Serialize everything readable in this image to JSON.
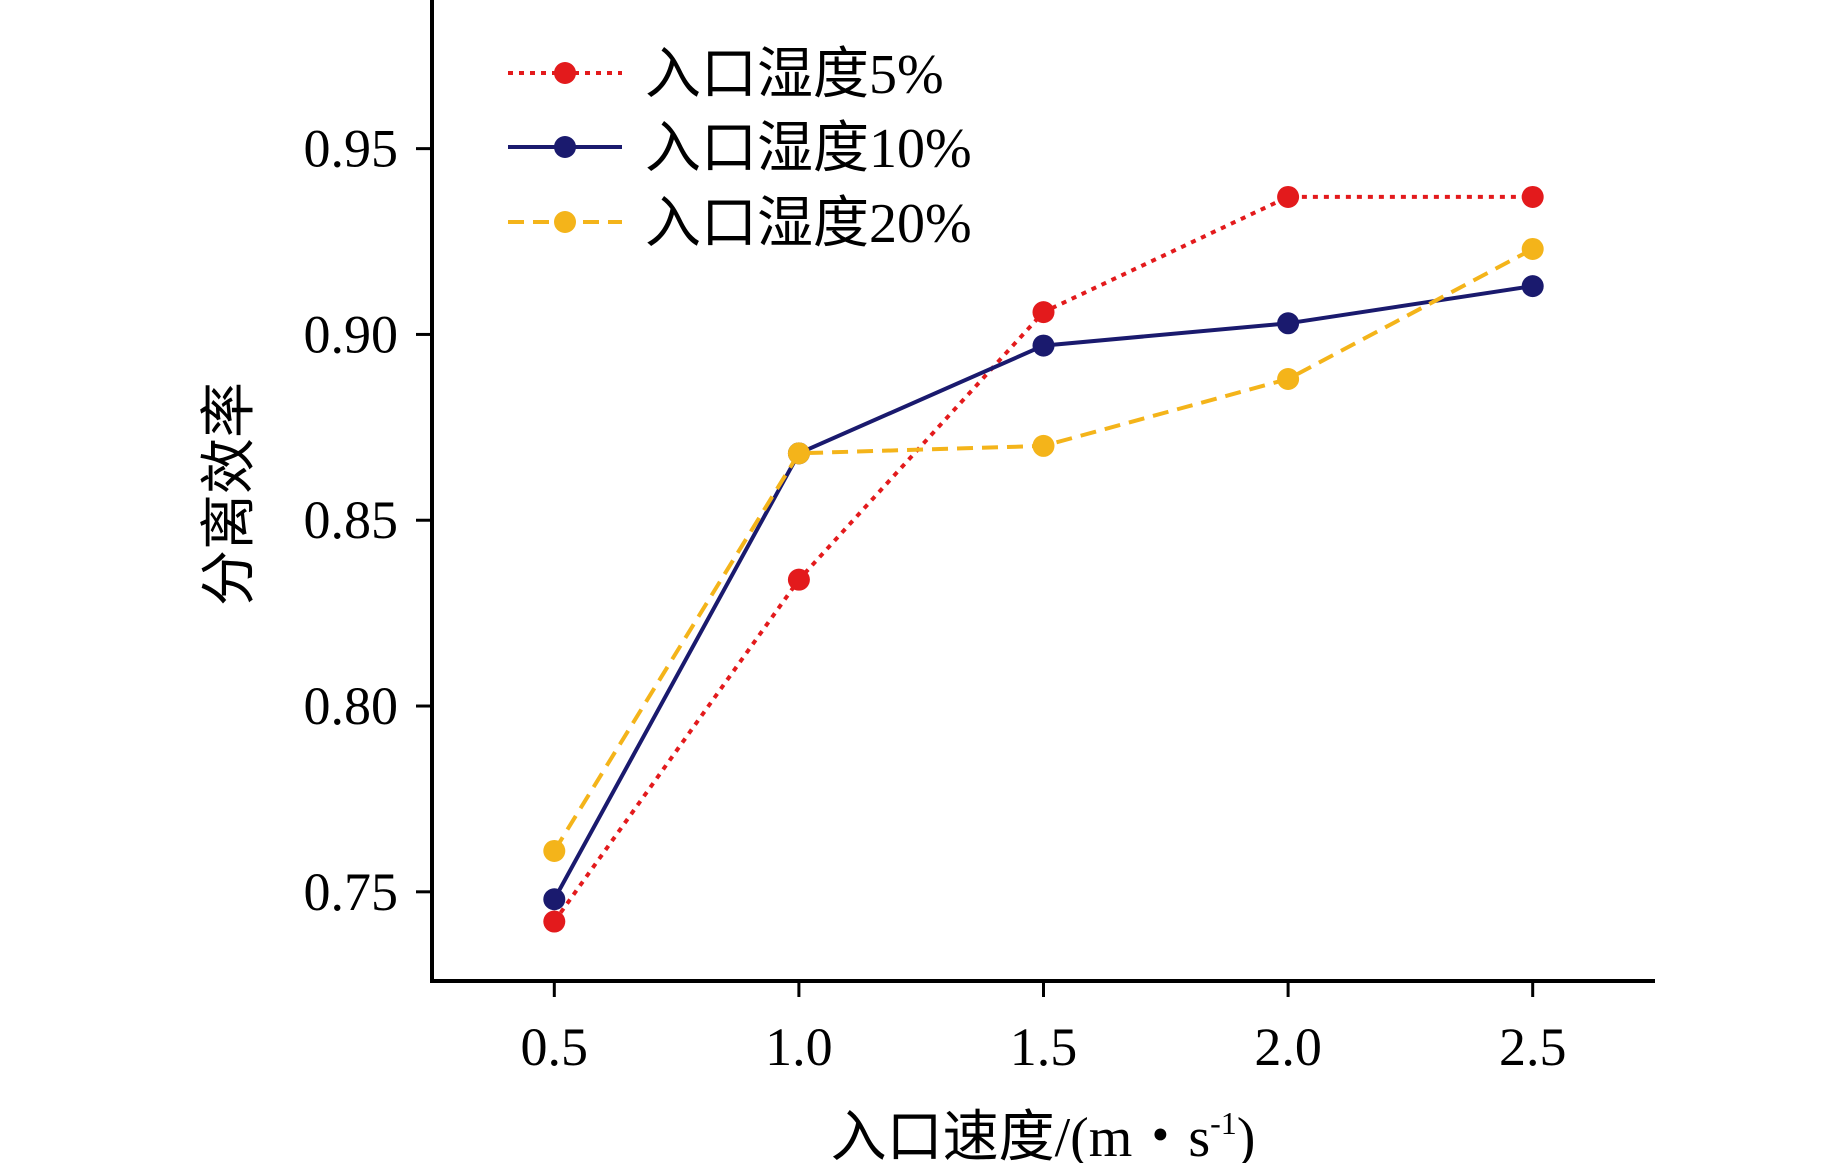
{
  "chart_data": {
    "type": "line",
    "xlabel": "入口速度/(m・s",
    "xlabel_sup": "-1",
    "xlabel_close": ")",
    "ylabel": "分离效率",
    "x": [
      0.5,
      1.0,
      1.5,
      2.0,
      2.5
    ],
    "x_ticks": [
      "0.5",
      "1.0",
      "1.5",
      "2.0",
      "2.5"
    ],
    "y_ticks": [
      "0.75",
      "0.80",
      "0.85",
      "0.90",
      "0.95"
    ],
    "xlim": [
      0.25,
      2.75
    ],
    "ylim": [
      0.726,
      0.99
    ],
    "grid": false,
    "legend_position": "top-left",
    "series": [
      {
        "name": "入口湿度5%",
        "color": "#e31a1c",
        "line_style": "dotted",
        "values": [
          0.742,
          0.834,
          0.906,
          0.937,
          0.937
        ]
      },
      {
        "name": "入口湿度10%",
        "color": "#1a1a6e",
        "line_style": "solid",
        "values": [
          0.748,
          0.868,
          0.897,
          0.903,
          0.913
        ]
      },
      {
        "name": "入口湿度20%",
        "color": "#f4b41a",
        "line_style": "dashed",
        "values": [
          0.761,
          0.868,
          0.87,
          0.888,
          0.923
        ]
      }
    ]
  }
}
